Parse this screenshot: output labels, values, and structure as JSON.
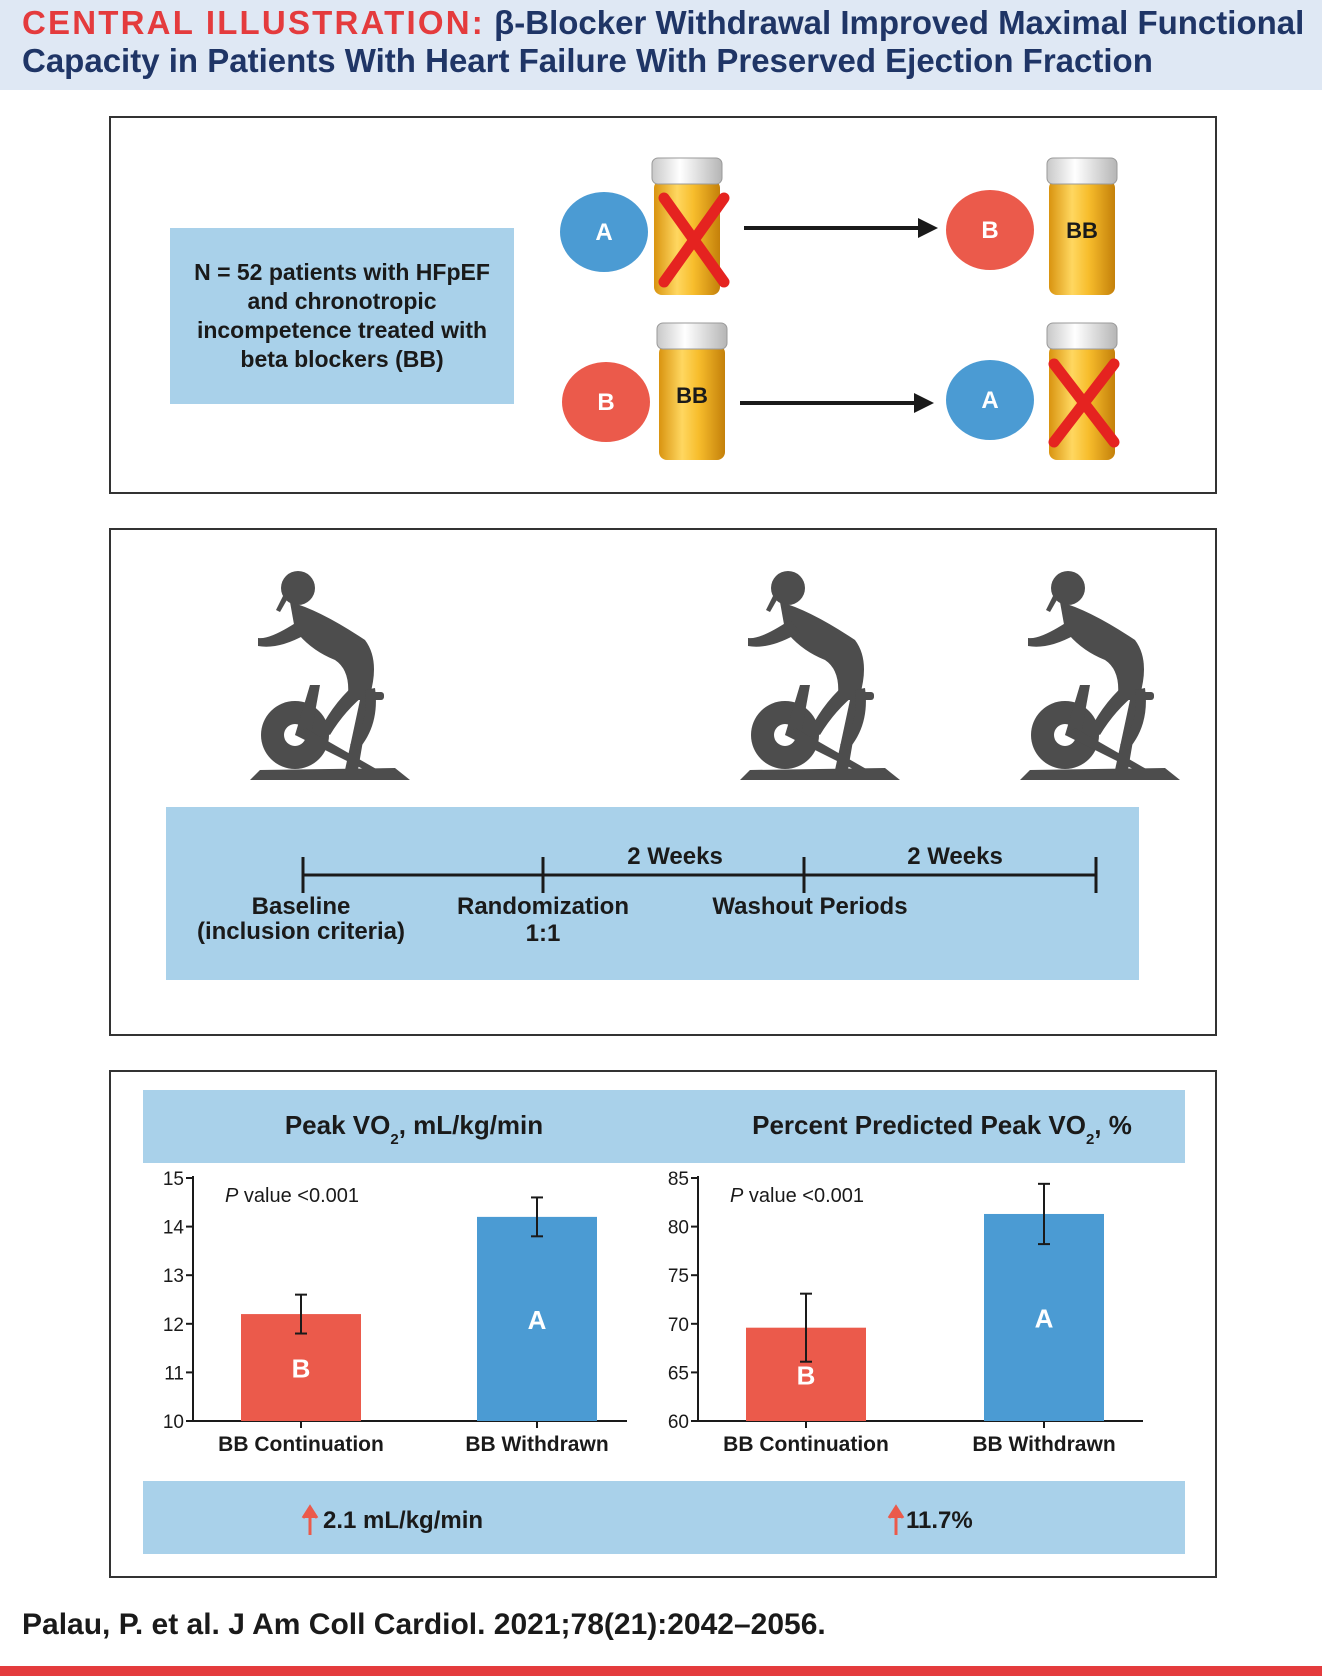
{
  "header": {
    "label": "CENTRAL ILLUSTRATION:",
    "title": " β-Blocker Withdrawal Improved Maximal Functional Capacity in Patients With Heart Failure With Preserved Ejection Fraction"
  },
  "design": {
    "population_text": "N = 52 patients with HFpEF\nand chronotropic\nincompetence treated with\nbeta blockers (BB)",
    "sequence_top": {
      "start_arm": "A",
      "end_arm": "B",
      "end_label": "BB"
    },
    "sequence_bottom": {
      "start_arm": "B",
      "start_label": "BB",
      "end_arm": "A"
    }
  },
  "timeline": {
    "interval_1": "2 Weeks",
    "interval_2": "2 Weeks",
    "baseline_line1": "Baseline",
    "baseline_line2": "(inclusion criteria)",
    "randomization_line1": "Randomization",
    "randomization_line2": "1:1",
    "washout": "Washout Periods"
  },
  "chart_headers": {
    "left_prefix": "Peak VO",
    "left_sub": "2",
    "left_suffix": ", mL/kg/min",
    "right_prefix": "Percent Predicted Peak VO",
    "right_sub": "2",
    "right_suffix": ", %"
  },
  "results": {
    "left": "2.1 mL/kg/min",
    "right": "11.7%"
  },
  "colors": {
    "arm_a": "#4b9bd3",
    "arm_b": "#eb5a4b",
    "band": "#a9d1ea",
    "arrow_up": "#eb5a4b",
    "title_accent": "#e43b3d",
    "title_blue": "#1f3566"
  },
  "chart_data": [
    {
      "type": "bar",
      "categories": [
        "BB Continuation",
        "BB Withdrawn"
      ],
      "values": [
        12.2,
        14.2
      ],
      "error": [
        [
          11.8,
          12.6
        ],
        [
          13.8,
          14.6
        ]
      ],
      "bar_labels": [
        "B",
        "A"
      ],
      "annotation_italic": "P",
      "annotation_rest": " value <0.001",
      "ylim": [
        10,
        15
      ],
      "yticks": [
        10,
        11,
        12,
        13,
        14,
        15
      ],
      "colors": [
        "#eb5a4b",
        "#4b9bd3"
      ]
    },
    {
      "type": "bar",
      "categories": [
        "BB Continuation",
        "BB Withdrawn"
      ],
      "values": [
        69.6,
        81.3
      ],
      "error": [
        [
          66.1,
          73.1
        ],
        [
          78.2,
          84.4
        ]
      ],
      "bar_labels": [
        "B",
        "A"
      ],
      "annotation_italic": "P",
      "annotation_rest": " value <0.001",
      "ylim": [
        60,
        85
      ],
      "yticks": [
        60,
        65,
        70,
        75,
        80,
        85
      ],
      "colors": [
        "#eb5a4b",
        "#4b9bd3"
      ]
    }
  ]
}
